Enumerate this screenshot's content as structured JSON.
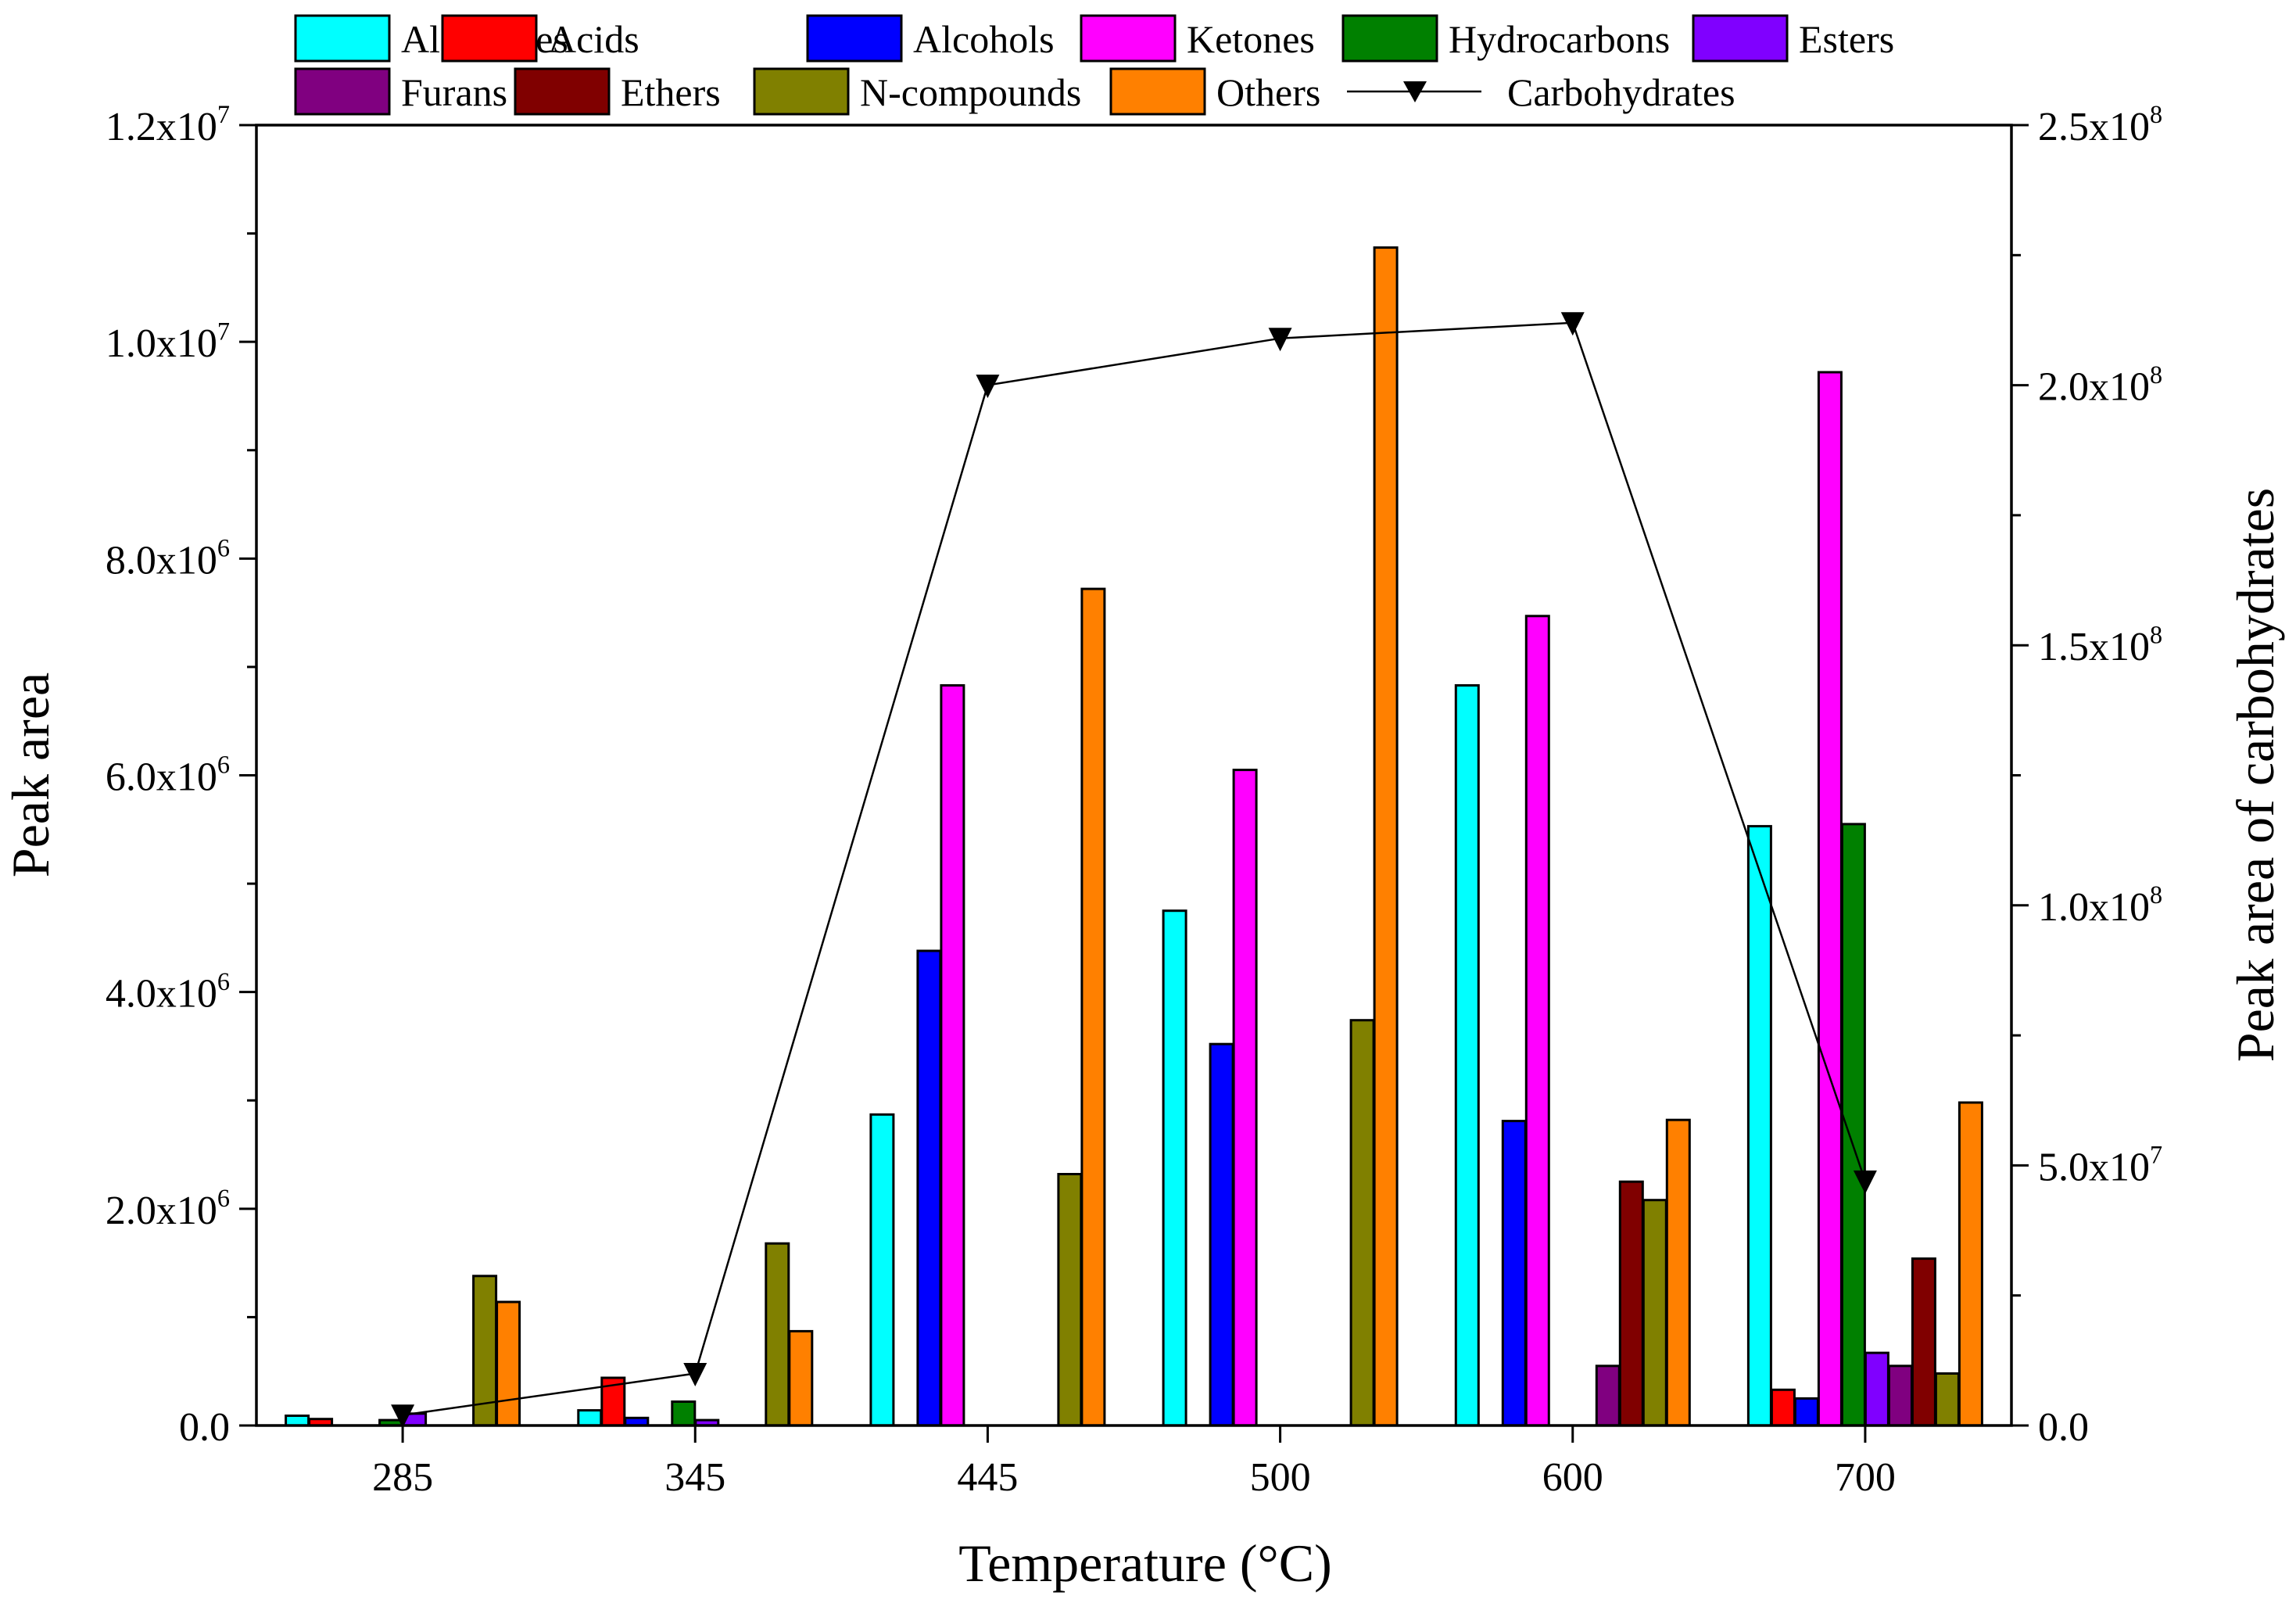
{
  "chart_data": {
    "type": "bar",
    "categories": [
      "285",
      "345",
      "445",
      "500",
      "600",
      "700"
    ],
    "xlabel": "Temperature (°C)",
    "ylabel": "Peak area",
    "y2label": "Peak area of carbohydrates",
    "ylim": [
      0,
      12000000
    ],
    "y2lim": [
      0,
      250000000
    ],
    "yticks": [
      {
        "value": 0,
        "label": "0.0"
      },
      {
        "value": 2000000,
        "label": "2.0x10",
        "exp": "6"
      },
      {
        "value": 4000000,
        "label": "4.0x10",
        "exp": "6"
      },
      {
        "value": 6000000,
        "label": "6.0x10",
        "exp": "6"
      },
      {
        "value": 8000000,
        "label": "8.0x10",
        "exp": "6"
      },
      {
        "value": 10000000,
        "label": "1.0x10",
        "exp": "7"
      },
      {
        "value": 12000000,
        "label": "1.2x10",
        "exp": "7"
      }
    ],
    "y2ticks": [
      {
        "value": 0,
        "label": "0.0"
      },
      {
        "value": 50000000,
        "label": "5.0x10",
        "exp": "7"
      },
      {
        "value": 100000000,
        "label": "1.0x10",
        "exp": "8"
      },
      {
        "value": 150000000,
        "label": "1.5x10",
        "exp": "8"
      },
      {
        "value": 200000000,
        "label": "2.0x10",
        "exp": "8"
      },
      {
        "value": 250000000,
        "label": "2.5x10",
        "exp": "8"
      }
    ],
    "series": [
      {
        "name": "Aldehydes",
        "color": "#00FFFF",
        "values": [
          90000,
          140000,
          2870000,
          4750000,
          6830000,
          5530000
        ]
      },
      {
        "name": "Acids",
        "color": "#FF0000",
        "values": [
          60000,
          440000,
          0,
          0,
          0,
          330000
        ]
      },
      {
        "name": "Alcohols",
        "color": "#0000FF",
        "values": [
          0,
          70000,
          4380000,
          3520000,
          2810000,
          250000
        ]
      },
      {
        "name": "Ketones",
        "color": "#FF00FF",
        "values": [
          0,
          0,
          6830000,
          6050000,
          7470000,
          9720000
        ]
      },
      {
        "name": "Hydrocarbons",
        "color": "#008000",
        "values": [
          50000,
          220000,
          0,
          0,
          0,
          5550000
        ]
      },
      {
        "name": "Esters",
        "color": "#8000FF",
        "values": [
          110000,
          50000,
          0,
          0,
          0,
          670000
        ]
      },
      {
        "name": "Furans",
        "color": "#800080",
        "values": [
          0,
          0,
          0,
          0,
          550000,
          550000
        ]
      },
      {
        "name": "Ethers",
        "color": "#800000",
        "values": [
          0,
          0,
          0,
          0,
          2250000,
          1540000
        ]
      },
      {
        "name": "N-compounds",
        "color": "#808000",
        "values": [
          1380000,
          1680000,
          2320000,
          3740000,
          2080000,
          480000
        ]
      },
      {
        "name": "Others",
        "color": "#FF8000",
        "values": [
          1140000,
          870000,
          7720000,
          10870000,
          2820000,
          2980000
        ]
      }
    ],
    "line_series": {
      "name": "Carbohydrates",
      "axis": "right",
      "color": "#000000",
      "marker": "down-triangle",
      "values": [
        2000000,
        10000000,
        200000000,
        209000000,
        212000000,
        47000000
      ]
    }
  }
}
